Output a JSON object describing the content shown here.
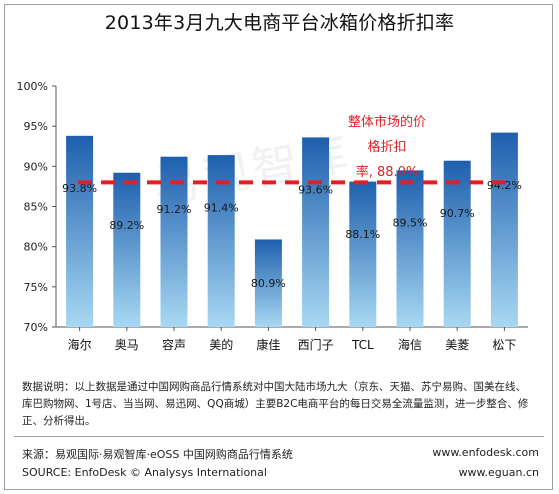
{
  "page_title": "2013年3月九大电商平台冰箱价格折扣率",
  "watermark": "易观智库",
  "chart_data": {
    "type": "bar",
    "categories": [
      "海尔",
      "奥马",
      "容声",
      "美的",
      "康佳",
      "西门子",
      "TCL",
      "海信",
      "美菱",
      "松下"
    ],
    "values": [
      93.8,
      89.2,
      91.2,
      91.4,
      80.9,
      93.6,
      88.1,
      89.5,
      90.7,
      94.2
    ],
    "value_labels": [
      "93.8%",
      "89.2%",
      "91.2%",
      "91.4%",
      "80.9%",
      "93.6%",
      "88.1%",
      "89.5%",
      "90.7%",
      "94.2%"
    ],
    "ylim": [
      70,
      100
    ],
    "yticks": [
      70,
      75,
      80,
      85,
      90,
      95,
      100
    ],
    "ytick_labels": [
      "70%",
      "75%",
      "80%",
      "85%",
      "90%",
      "95%",
      "100%"
    ],
    "reference_line": {
      "value": 88.0,
      "label_lines": [
        "整体市场的价",
        "格折扣",
        "率, 88.0%"
      ]
    },
    "grid": false,
    "colors": {
      "bar_top": "#1e5fae",
      "bar_bottom": "#a8d8f2",
      "reference": "#e31e24"
    }
  },
  "footer": {
    "note": "数据说明：以上数据是通过中国网购商品行情系统对中国大陆市场九大（京东、天猫、苏宁易购、国美在线、库巴购物网、1号店、当当网、易迅网、QQ商城）主要B2C电商平台的每日交易全流量监测，进一步整合、修正、分析得出。",
    "source_cn": "来源：易观国际·易观智库·eOSS 中国网购商品行情系统",
    "source_en": "SOURCE: EnfoDesk © Analysys International",
    "url1": "www.enfodesk.com",
    "url2": "www.eguan.cn"
  }
}
